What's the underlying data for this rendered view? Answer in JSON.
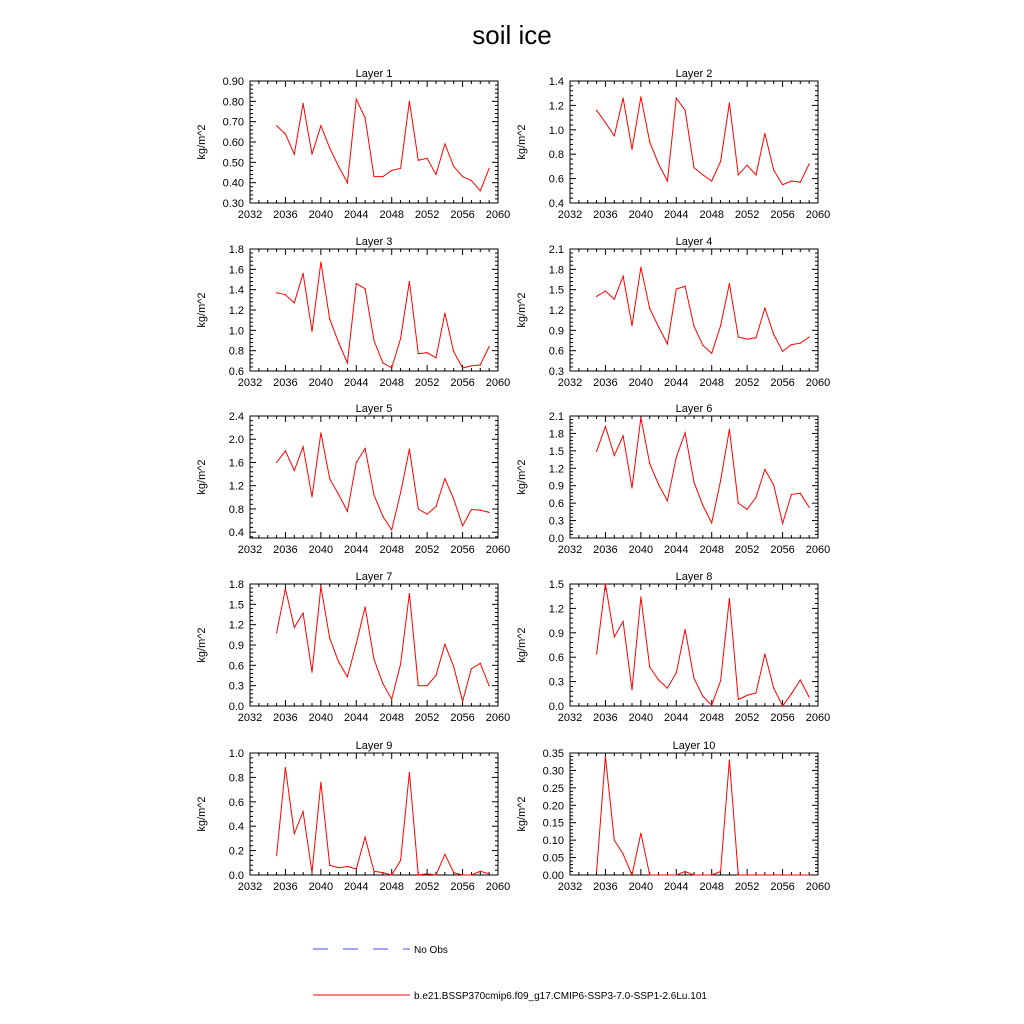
{
  "title": "soil ice",
  "colors": {
    "model_line": "#ff0000",
    "obs_line": "#4a4aff",
    "axis": "#000000"
  },
  "legend": {
    "obs_label": "No Obs",
    "model_label": "b.e21.BSSP370cmip6.f09_g17.CMIP6-SSP3-7.0-SSP1-2.6Lu.101"
  },
  "chart_data": [
    {
      "type": "line",
      "title": "Layer 1",
      "ylabel": "kg/m^2",
      "xlim": [
        2032,
        2060
      ],
      "xticks": [
        2032,
        2036,
        2040,
        2044,
        2048,
        2052,
        2056,
        2060
      ],
      "ylim": [
        0.3,
        0.9
      ],
      "yticks": [
        "0.30",
        "0.40",
        "0.50",
        "0.60",
        "0.70",
        "0.80",
        "0.90"
      ],
      "x": [
        2035,
        2036,
        2037,
        2038,
        2039,
        2040,
        2041,
        2042,
        2043,
        2044,
        2045,
        2046,
        2047,
        2048,
        2049,
        2050,
        2051,
        2052,
        2053,
        2054,
        2055,
        2056,
        2057,
        2058,
        2059
      ],
      "values": [
        0.68,
        0.64,
        0.54,
        0.79,
        0.54,
        0.68,
        0.57,
        0.48,
        0.4,
        0.81,
        0.72,
        0.43,
        0.43,
        0.46,
        0.47,
        0.8,
        0.51,
        0.52,
        0.44,
        0.59,
        0.48,
        0.43,
        0.41,
        0.36,
        0.47
      ]
    },
    {
      "type": "line",
      "title": "Layer 2",
      "ylabel": "kg/m^2",
      "xlim": [
        2032,
        2060
      ],
      "xticks": [
        2032,
        2036,
        2040,
        2044,
        2048,
        2052,
        2056,
        2060
      ],
      "ylim": [
        0.4,
        1.4
      ],
      "yticks": [
        "0.4",
        "0.6",
        "0.8",
        "1.0",
        "1.2",
        "1.4"
      ],
      "x": [
        2035,
        2036,
        2037,
        2038,
        2039,
        2040,
        2041,
        2042,
        2043,
        2044,
        2045,
        2046,
        2047,
        2048,
        2049,
        2050,
        2051,
        2052,
        2053,
        2054,
        2055,
        2056,
        2057,
        2058,
        2059
      ],
      "values": [
        1.16,
        1.06,
        0.95,
        1.26,
        0.84,
        1.27,
        0.9,
        0.72,
        0.58,
        1.26,
        1.16,
        0.69,
        0.63,
        0.58,
        0.74,
        1.22,
        0.63,
        0.71,
        0.63,
        0.97,
        0.67,
        0.55,
        0.58,
        0.57,
        0.72
      ]
    },
    {
      "type": "line",
      "title": "Layer 3",
      "ylabel": "kg/m^2",
      "xlim": [
        2032,
        2060
      ],
      "xticks": [
        2032,
        2036,
        2040,
        2044,
        2048,
        2052,
        2056,
        2060
      ],
      "ylim": [
        0.6,
        1.8
      ],
      "yticks": [
        "0.6",
        "0.8",
        "1.0",
        "1.2",
        "1.4",
        "1.6",
        "1.8"
      ],
      "x": [
        2035,
        2036,
        2037,
        2038,
        2039,
        2040,
        2041,
        2042,
        2043,
        2044,
        2045,
        2046,
        2047,
        2048,
        2049,
        2050,
        2051,
        2052,
        2053,
        2054,
        2055,
        2056,
        2057,
        2058,
        2059
      ],
      "values": [
        1.37,
        1.35,
        1.27,
        1.56,
        0.99,
        1.67,
        1.11,
        0.88,
        0.68,
        1.46,
        1.41,
        0.9,
        0.68,
        0.63,
        0.92,
        1.48,
        0.77,
        0.78,
        0.73,
        1.17,
        0.79,
        0.63,
        0.65,
        0.66,
        0.84
      ]
    },
    {
      "type": "line",
      "title": "Layer 4",
      "ylabel": "kg/m^2",
      "xlim": [
        2032,
        2060
      ],
      "xticks": [
        2032,
        2036,
        2040,
        2044,
        2048,
        2052,
        2056,
        2060
      ],
      "ylim": [
        0.3,
        2.1
      ],
      "yticks": [
        "0.3",
        "0.6",
        "0.9",
        "1.2",
        "1.5",
        "1.8",
        "2.1"
      ],
      "x": [
        2035,
        2036,
        2037,
        2038,
        2039,
        2040,
        2041,
        2042,
        2043,
        2044,
        2045,
        2046,
        2047,
        2048,
        2049,
        2050,
        2051,
        2052,
        2053,
        2054,
        2055,
        2056,
        2057,
        2058,
        2059
      ],
      "values": [
        1.4,
        1.48,
        1.36,
        1.7,
        0.97,
        1.83,
        1.22,
        0.95,
        0.7,
        1.51,
        1.55,
        0.96,
        0.68,
        0.56,
        0.97,
        1.59,
        0.8,
        0.77,
        0.79,
        1.23,
        0.84,
        0.59,
        0.69,
        0.71,
        0.8
      ]
    },
    {
      "type": "line",
      "title": "Layer 5",
      "ylabel": "kg/m^2",
      "xlim": [
        2032,
        2060
      ],
      "xticks": [
        2032,
        2036,
        2040,
        2044,
        2048,
        2052,
        2056,
        2060
      ],
      "ylim": [
        0.3,
        2.4
      ],
      "yticks": [
        "0.4",
        "0.8",
        "1.2",
        "1.6",
        "2.0",
        "2.4"
      ],
      "x": [
        2035,
        2036,
        2037,
        2038,
        2039,
        2040,
        2041,
        2042,
        2043,
        2044,
        2045,
        2046,
        2047,
        2048,
        2049,
        2050,
        2051,
        2052,
        2053,
        2054,
        2055,
        2056,
        2057,
        2058,
        2059
      ],
      "values": [
        1.6,
        1.8,
        1.46,
        1.87,
        1.01,
        2.11,
        1.32,
        1.05,
        0.76,
        1.6,
        1.84,
        1.04,
        0.67,
        0.44,
        1.08,
        1.83,
        0.8,
        0.71,
        0.84,
        1.32,
        0.97,
        0.51,
        0.79,
        0.78,
        0.74
      ]
    },
    {
      "type": "line",
      "title": "Layer 6",
      "ylabel": "kg/m^2",
      "xlim": [
        2032,
        2060
      ],
      "xticks": [
        2032,
        2036,
        2040,
        2044,
        2048,
        2052,
        2056,
        2060
      ],
      "ylim": [
        0.0,
        2.1
      ],
      "yticks": [
        "0.0",
        "0.3",
        "0.6",
        "0.9",
        "1.2",
        "1.5",
        "1.8",
        "2.1"
      ],
      "x": [
        2035,
        2036,
        2037,
        2038,
        2039,
        2040,
        2041,
        2042,
        2043,
        2044,
        2045,
        2046,
        2047,
        2048,
        2049,
        2050,
        2051,
        2052,
        2053,
        2054,
        2055,
        2056,
        2057,
        2058,
        2059
      ],
      "values": [
        1.49,
        1.92,
        1.42,
        1.76,
        0.86,
        2.07,
        1.28,
        0.92,
        0.64,
        1.39,
        1.81,
        0.96,
        0.56,
        0.26,
        0.99,
        1.87,
        0.6,
        0.49,
        0.7,
        1.18,
        0.91,
        0.25,
        0.75,
        0.77,
        0.53
      ]
    },
    {
      "type": "line",
      "title": "Layer 7",
      "ylabel": "kg/m^2",
      "xlim": [
        2032,
        2060
      ],
      "xticks": [
        2032,
        2036,
        2040,
        2044,
        2048,
        2052,
        2056,
        2060
      ],
      "ylim": [
        0.0,
        1.8
      ],
      "yticks": [
        "0.0",
        "0.3",
        "0.6",
        "0.9",
        "1.2",
        "1.5",
        "1.8"
      ],
      "x": [
        2035,
        2036,
        2037,
        2038,
        2039,
        2040,
        2041,
        2042,
        2043,
        2044,
        2045,
        2046,
        2047,
        2048,
        2049,
        2050,
        2051,
        2052,
        2053,
        2054,
        2055,
        2056,
        2057,
        2058,
        2059
      ],
      "values": [
        1.08,
        1.73,
        1.16,
        1.37,
        0.5,
        1.76,
        1.0,
        0.65,
        0.43,
        0.92,
        1.46,
        0.69,
        0.33,
        0.1,
        0.62,
        1.66,
        0.3,
        0.3,
        0.45,
        0.91,
        0.58,
        0.07,
        0.55,
        0.63,
        0.3
      ]
    },
    {
      "type": "line",
      "title": "Layer 8",
      "ylabel": "kg/m^2",
      "xlim": [
        2032,
        2060
      ],
      "xticks": [
        2032,
        2036,
        2040,
        2044,
        2048,
        2052,
        2056,
        2060
      ],
      "ylim": [
        0.0,
        1.5
      ],
      "yticks": [
        "0.0",
        "0.3",
        "0.6",
        "0.9",
        "1.2",
        "1.5"
      ],
      "x": [
        2035,
        2036,
        2037,
        2038,
        2039,
        2040,
        2041,
        2042,
        2043,
        2044,
        2045,
        2046,
        2047,
        2048,
        2049,
        2050,
        2051,
        2052,
        2053,
        2054,
        2055,
        2056,
        2057,
        2058,
        2059
      ],
      "values": [
        0.64,
        1.5,
        0.85,
        1.04,
        0.2,
        1.34,
        0.48,
        0.32,
        0.22,
        0.41,
        0.94,
        0.34,
        0.12,
        0.01,
        0.31,
        1.32,
        0.08,
        0.13,
        0.16,
        0.64,
        0.22,
        0.0,
        0.15,
        0.32,
        0.11
      ]
    },
    {
      "type": "line",
      "title": "Layer 9",
      "ylabel": "kg/m^2",
      "xlim": [
        2032,
        2060
      ],
      "xticks": [
        2032,
        2036,
        2040,
        2044,
        2048,
        2052,
        2056,
        2060
      ],
      "ylim": [
        0.0,
        1.0
      ],
      "yticks": [
        "0.0",
        "0.2",
        "0.4",
        "0.6",
        "0.8",
        "1.0"
      ],
      "x": [
        2035,
        2036,
        2037,
        2038,
        2039,
        2040,
        2041,
        2042,
        2043,
        2044,
        2045,
        2046,
        2047,
        2048,
        2049,
        2050,
        2051,
        2052,
        2053,
        2054,
        2055,
        2056,
        2057,
        2058,
        2059
      ],
      "values": [
        0.16,
        0.88,
        0.34,
        0.52,
        0.02,
        0.76,
        0.08,
        0.06,
        0.07,
        0.05,
        0.31,
        0.03,
        0.02,
        0.0,
        0.12,
        0.84,
        0.0,
        0.01,
        0.0,
        0.17,
        0.02,
        0.0,
        0.0,
        0.03,
        0.01
      ]
    },
    {
      "type": "line",
      "title": "Layer 10",
      "ylabel": "kg/m^2",
      "xlim": [
        2032,
        2060
      ],
      "xticks": [
        2032,
        2036,
        2040,
        2044,
        2048,
        2052,
        2056,
        2060
      ],
      "ylim": [
        0.0,
        0.35
      ],
      "yticks": [
        "0.00",
        "0.05",
        "0.10",
        "0.15",
        "0.20",
        "0.25",
        "0.30",
        "0.35"
      ],
      "x": [
        2035,
        2036,
        2037,
        2038,
        2039,
        2040,
        2041,
        2042,
        2043,
        2044,
        2045,
        2046,
        2047,
        2048,
        2049,
        2050,
        2051,
        2052,
        2053,
        2054,
        2055,
        2056,
        2057,
        2058,
        2059
      ],
      "values": [
        0.01,
        0.34,
        0.1,
        0.06,
        0.0,
        0.12,
        0.0,
        0.0,
        0.0,
        0.0,
        0.01,
        0.0,
        0.0,
        0.0,
        0.01,
        0.33,
        0.0,
        0.0,
        0.0,
        0.0,
        0.0,
        0.0,
        0.0,
        0.0,
        0.0
      ]
    }
  ]
}
